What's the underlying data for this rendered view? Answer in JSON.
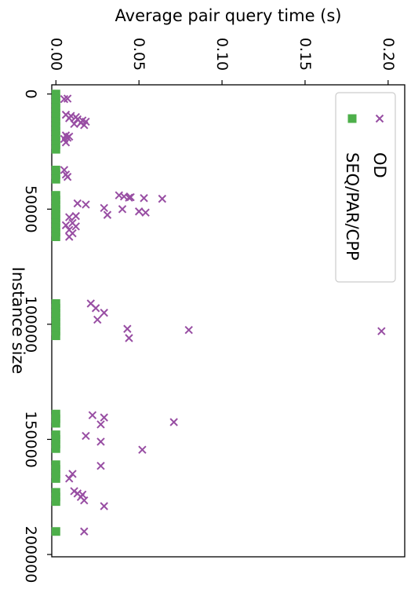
{
  "chart_data": {
    "type": "scatter",
    "orientation": "rotated-90-clockwise",
    "xlabel": "Instance size",
    "ylabel": "Average pair query time (s)",
    "xlim": [
      -4000,
      201000
    ],
    "ylim": [
      -0.0025,
      0.21
    ],
    "x_ticks": [
      0,
      50000,
      100000,
      150000,
      200000
    ],
    "x_tick_labels": [
      "0",
      "50000",
      "100000",
      "150000",
      "200000"
    ],
    "y_ticks": [
      0.0,
      0.05,
      0.1,
      0.15,
      0.2
    ],
    "y_tick_labels": [
      "0.00",
      "0.05",
      "0.10",
      "0.15",
      "0.20"
    ],
    "legend_position": "top-right",
    "grid": false,
    "series": [
      {
        "name": "OD",
        "marker": "x",
        "color": "#984ea3",
        "points": [
          [
            2000,
            0.007
          ],
          [
            2200,
            0.005
          ],
          [
            9000,
            0.006
          ],
          [
            9500,
            0.009
          ],
          [
            10000,
            0.012
          ],
          [
            10500,
            0.008
          ],
          [
            11000,
            0.013
          ],
          [
            11500,
            0.016
          ],
          [
            12000,
            0.018
          ],
          [
            12500,
            0.015
          ],
          [
            13000,
            0.011
          ],
          [
            13500,
            0.017
          ],
          [
            18000,
            0.006
          ],
          [
            18500,
            0.008
          ],
          [
            19000,
            0.007
          ],
          [
            19500,
            0.005
          ],
          [
            21000,
            0.006
          ],
          [
            33000,
            0.005
          ],
          [
            35000,
            0.006
          ],
          [
            36000,
            0.007
          ],
          [
            44000,
            0.038
          ],
          [
            44500,
            0.041
          ],
          [
            44800,
            0.045
          ],
          [
            45000,
            0.044
          ],
          [
            45200,
            0.053
          ],
          [
            45500,
            0.064
          ],
          [
            47500,
            0.013
          ],
          [
            48000,
            0.018
          ],
          [
            49500,
            0.029
          ],
          [
            50000,
            0.04
          ],
          [
            51000,
            0.05
          ],
          [
            51500,
            0.054
          ],
          [
            52500,
            0.031
          ],
          [
            53000,
            0.012
          ],
          [
            53500,
            0.008
          ],
          [
            56000,
            0.01
          ],
          [
            57000,
            0.006
          ],
          [
            57500,
            0.012
          ],
          [
            59000,
            0.008
          ],
          [
            60500,
            0.01
          ],
          [
            62000,
            0.008
          ],
          [
            91000,
            0.021
          ],
          [
            93000,
            0.024
          ],
          [
            95000,
            0.029
          ],
          [
            98000,
            0.025
          ],
          [
            102000,
            0.043
          ],
          [
            102500,
            0.08
          ],
          [
            103000,
            0.196
          ],
          [
            106000,
            0.044
          ],
          [
            139500,
            0.022
          ],
          [
            140500,
            0.029
          ],
          [
            142500,
            0.071
          ],
          [
            143500,
            0.027
          ],
          [
            148500,
            0.018
          ],
          [
            151000,
            0.027
          ],
          [
            154500,
            0.052
          ],
          [
            161500,
            0.027
          ],
          [
            165000,
            0.01
          ],
          [
            167000,
            0.008
          ],
          [
            172500,
            0.011
          ],
          [
            173500,
            0.013
          ],
          [
            174000,
            0.016
          ],
          [
            175000,
            0.015
          ],
          [
            176500,
            0.017
          ],
          [
            179000,
            0.029
          ],
          [
            190000,
            0.017
          ]
        ]
      },
      {
        "name": "SEQ/PAR/CPP",
        "marker": "s",
        "color": "#4daf4a",
        "points": [
          [
            0,
            0.0
          ],
          [
            2000,
            0.0
          ],
          [
            4000,
            0.0
          ],
          [
            6000,
            0.0
          ],
          [
            8000,
            0.0
          ],
          [
            10000,
            0.0
          ],
          [
            12000,
            0.0
          ],
          [
            14000,
            0.0
          ],
          [
            16000,
            0.0
          ],
          [
            18000,
            0.0
          ],
          [
            20000,
            0.0
          ],
          [
            22000,
            0.0
          ],
          [
            24000,
            0.0
          ],
          [
            33000,
            0.0
          ],
          [
            35000,
            0.0
          ],
          [
            37000,
            0.0
          ],
          [
            44000,
            0.0
          ],
          [
            46000,
            0.0
          ],
          [
            48000,
            0.0
          ],
          [
            50000,
            0.0
          ],
          [
            52000,
            0.0
          ],
          [
            54000,
            0.0
          ],
          [
            56000,
            0.0
          ],
          [
            58000,
            0.0
          ],
          [
            60000,
            0.0
          ],
          [
            62000,
            0.0
          ],
          [
            91000,
            0.0
          ],
          [
            93000,
            0.0
          ],
          [
            95000,
            0.0
          ],
          [
            97000,
            0.0
          ],
          [
            99000,
            0.0
          ],
          [
            101000,
            0.0
          ],
          [
            103000,
            0.0
          ],
          [
            105000,
            0.0
          ],
          [
            139000,
            0.0
          ],
          [
            141000,
            0.0
          ],
          [
            143000,
            0.0
          ],
          [
            148000,
            0.0
          ],
          [
            150000,
            0.0
          ],
          [
            152000,
            0.0
          ],
          [
            154000,
            0.0
          ],
          [
            161000,
            0.0
          ],
          [
            163000,
            0.0
          ],
          [
            165000,
            0.0
          ],
          [
            167000,
            0.0
          ],
          [
            173000,
            0.0
          ],
          [
            175000,
            0.0
          ],
          [
            177000,
            0.0
          ],
          [
            190000,
            0.0
          ]
        ]
      }
    ]
  }
}
